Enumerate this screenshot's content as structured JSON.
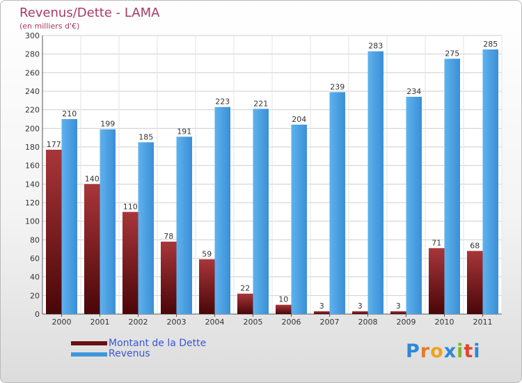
{
  "chart_data": {
    "type": "bar",
    "title": "Revenus/Dette - LAMA",
    "subtitle": "(en milliers d'€)",
    "categories": [
      "2000",
      "2001",
      "2002",
      "2003",
      "2004",
      "2005",
      "2006",
      "2007",
      "2008",
      "2009",
      "2010",
      "2011"
    ],
    "series": [
      {
        "name": "Montant de la Dette",
        "color": "#7a1a1e",
        "values": [
          177,
          140,
          110,
          78,
          59,
          22,
          10,
          3,
          3,
          3,
          71,
          68
        ]
      },
      {
        "name": "Revenus",
        "color": "#4a9fe0",
        "values": [
          210,
          199,
          185,
          191,
          223,
          221,
          204,
          239,
          283,
          234,
          275,
          285
        ]
      }
    ],
    "ylim": [
      0,
      300
    ],
    "yticks": [
      0,
      20,
      40,
      60,
      80,
      100,
      120,
      140,
      160,
      180,
      200,
      220,
      240,
      260,
      280,
      300
    ],
    "grid": true,
    "legend_placement": "bottom-left"
  },
  "brand": {
    "logo_text": "Proxiti"
  }
}
